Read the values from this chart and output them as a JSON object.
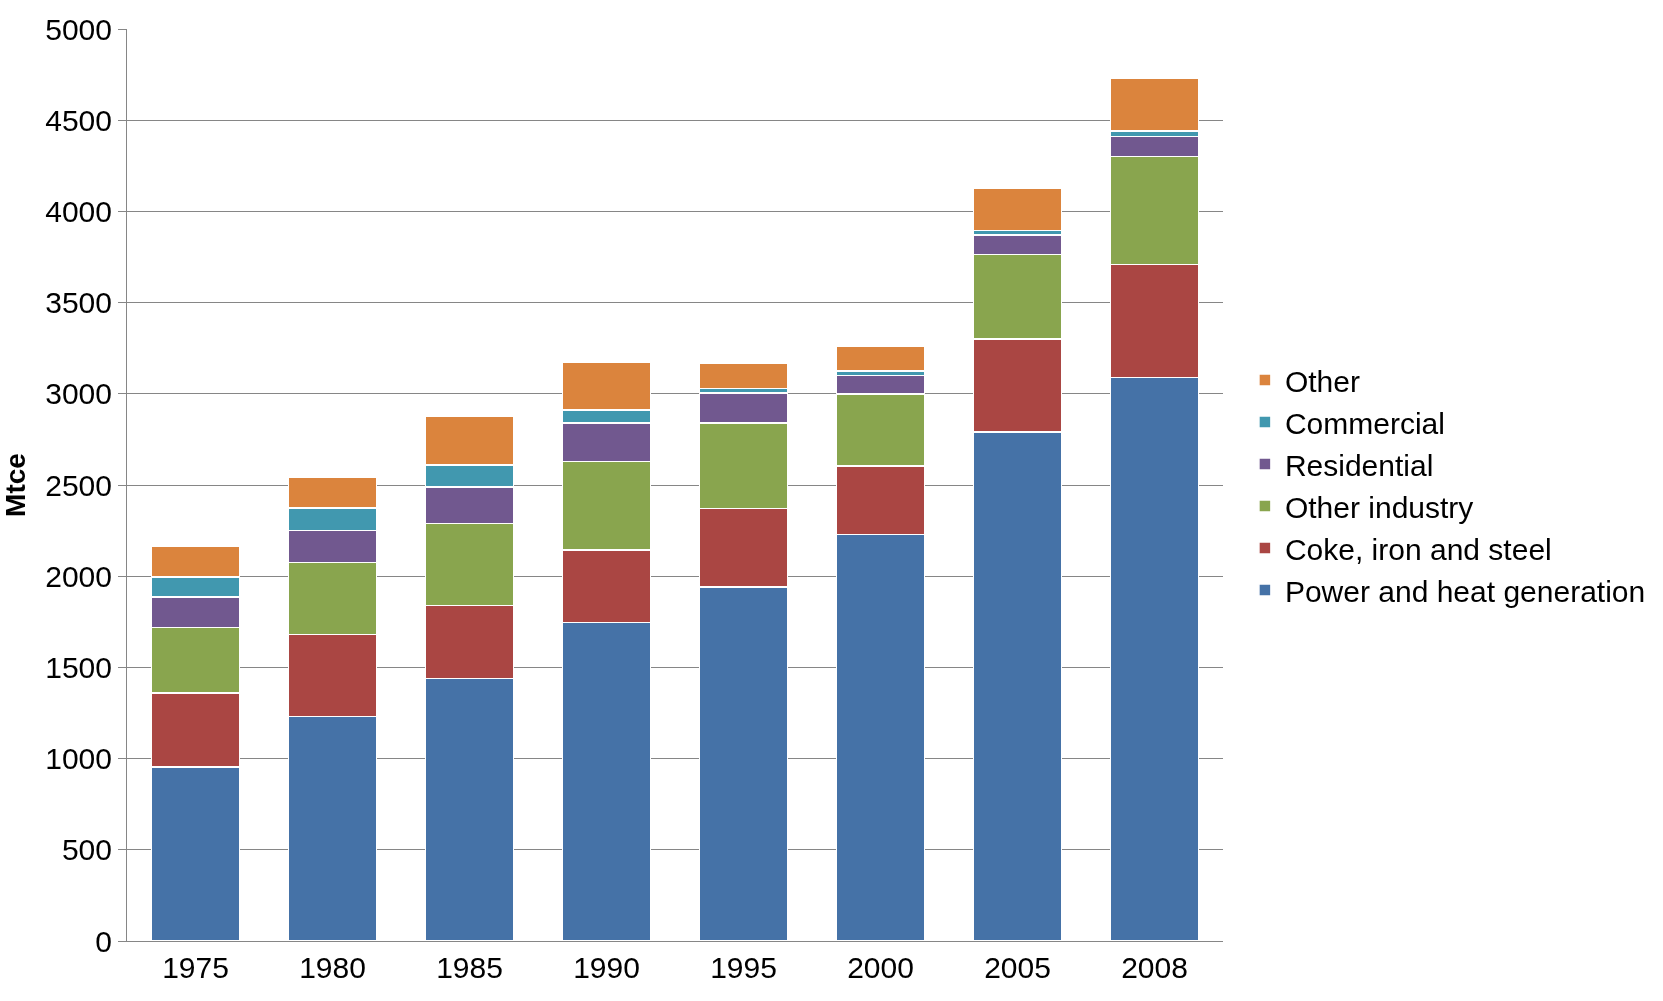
{
  "chart_data": {
    "type": "bar",
    "ylabel": "Mtce",
    "categories": [
      "1975",
      "1980",
      "1985",
      "1990",
      "1995",
      "2000",
      "2005",
      "2008"
    ],
    "stacked": true,
    "ylim": [
      0,
      5000
    ],
    "yticks": [
      0,
      500,
      1000,
      1500,
      2000,
      2500,
      3000,
      3500,
      4000,
      4500,
      5000
    ],
    "grid": "y",
    "legend": "right",
    "series": [
      {
        "name": "Power and heat generation",
        "color": "#4572a7",
        "values": [
          955,
          1230,
          1440,
          1745,
          1940,
          2230,
          2790,
          3090
        ]
      },
      {
        "name": "Coke, iron and steel",
        "color": "#aa4643",
        "values": [
          405,
          450,
          400,
          400,
          430,
          375,
          510,
          620
        ]
      },
      {
        "name": "Other industry",
        "color": "#89a54e",
        "values": [
          360,
          395,
          450,
          485,
          470,
          395,
          465,
          590
        ]
      },
      {
        "name": "Residential",
        "color": "#71588f",
        "values": [
          165,
          175,
          200,
          210,
          165,
          100,
          105,
          110
        ]
      },
      {
        "name": "Commercial",
        "color": "#4198af",
        "values": [
          110,
          125,
          120,
          70,
          25,
          25,
          25,
          30
        ]
      },
      {
        "name": "Other",
        "color": "#db843d",
        "values": [
          170,
          170,
          265,
          265,
          135,
          135,
          230,
          290
        ]
      }
    ]
  }
}
